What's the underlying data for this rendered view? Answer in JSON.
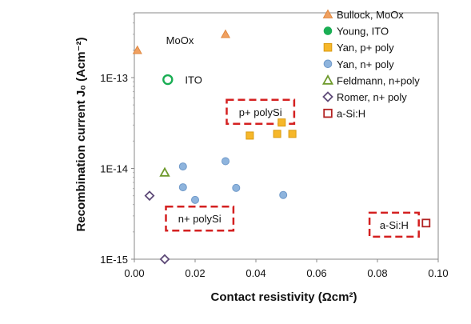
{
  "chart_data": {
    "type": "scatter",
    "xlabel": "Contact resistivity (Ωcm²)",
    "ylabel": "Recombination current J₀ (Acm⁻²)",
    "xlim": [
      0,
      0.1
    ],
    "ylim": [
      1e-15,
      5e-13
    ],
    "y_scale": "log",
    "x_ticks": [
      {
        "value": 0.0,
        "label": "0.00"
      },
      {
        "value": 0.02,
        "label": "0.02"
      },
      {
        "value": 0.04,
        "label": "0.04"
      },
      {
        "value": 0.06,
        "label": "0.06"
      },
      {
        "value": 0.08,
        "label": "0.08"
      },
      {
        "value": 0.1,
        "label": "0.10"
      }
    ],
    "y_ticks": [
      {
        "value": 1e-15,
        "label": "1E-15"
      },
      {
        "value": 1e-14,
        "label": "1E-14"
      },
      {
        "value": 1e-13,
        "label": "1E-13"
      }
    ],
    "grid": false,
    "legend_position": "top-right",
    "series": [
      {
        "name": "Bullock, MoOx",
        "marker": "triangle",
        "filled": true,
        "color": "#F0A060",
        "stroke": "#E08840",
        "points": [
          {
            "x": 0.001,
            "y": 2e-13
          },
          {
            "x": 0.03,
            "y": 3e-13
          }
        ]
      },
      {
        "name": "Young, ITO",
        "marker": "circle",
        "filled": true,
        "color": "#1AAE54",
        "stroke": "#1AAE54",
        "points": []
      },
      {
        "name": "Young, ITO",
        "marker": "circle",
        "filled": false,
        "color": "#ffffff",
        "stroke": "#1AAE54",
        "legend": false,
        "points": [
          {
            "x": 0.011,
            "y": 9.5e-14
          }
        ]
      },
      {
        "name": "Yan, p+ poly",
        "marker": "square",
        "filled": true,
        "color": "#F6B72A",
        "stroke": "#D99A10",
        "points": [
          {
            "x": 0.038,
            "y": 2.3e-14
          },
          {
            "x": 0.047,
            "y": 2.4e-14
          },
          {
            "x": 0.0485,
            "y": 3.2e-14
          },
          {
            "x": 0.052,
            "y": 2.4e-14
          }
        ]
      },
      {
        "name": "Yan, n+ poly",
        "marker": "circle",
        "filled": true,
        "color": "#8EB4DD",
        "stroke": "#6F99C9",
        "points": [
          {
            "x": 0.016,
            "y": 1.05e-14
          },
          {
            "x": 0.016,
            "y": 6.2e-15
          },
          {
            "x": 0.02,
            "y": 4.5e-15
          },
          {
            "x": 0.03,
            "y": 1.2e-14
          },
          {
            "x": 0.0335,
            "y": 6.1e-15
          },
          {
            "x": 0.049,
            "y": 5.1e-15
          }
        ]
      },
      {
        "name": "Feldmann, n+poly",
        "marker": "triangle",
        "filled": false,
        "color": "#ffffff",
        "stroke": "#6E9A2C",
        "points": [
          {
            "x": 0.01,
            "y": 9e-15
          }
        ]
      },
      {
        "name": "Romer, n+ poly",
        "marker": "diamond",
        "filled": false,
        "color": "#ffffff",
        "stroke": "#5E4A78",
        "points": [
          {
            "x": 0.005,
            "y": 5e-15
          },
          {
            "x": 0.01,
            "y": 1e-15
          }
        ]
      },
      {
        "name": "a-Si:H",
        "marker": "square",
        "filled": false,
        "color": "#ffffff",
        "stroke": "#B22222",
        "points": [
          {
            "x": 0.096,
            "y": 2.5e-15
          }
        ]
      }
    ],
    "annotations": [
      {
        "text": "MoOx",
        "x": 0.015,
        "y": 2.6e-13,
        "boxed": false
      },
      {
        "text": "ITO",
        "x": 0.0195,
        "y": 9.5e-14,
        "boxed": false
      },
      {
        "text": "p+ polySi",
        "x": 0.0415,
        "y": 4.2e-14,
        "boxed": true
      },
      {
        "text": "n+ polySi",
        "x": 0.0215,
        "y": 2.8e-15,
        "boxed": true
      },
      {
        "text": "a-Si:H",
        "x": 0.0855,
        "y": 2.4e-15,
        "boxed": true
      }
    ]
  }
}
